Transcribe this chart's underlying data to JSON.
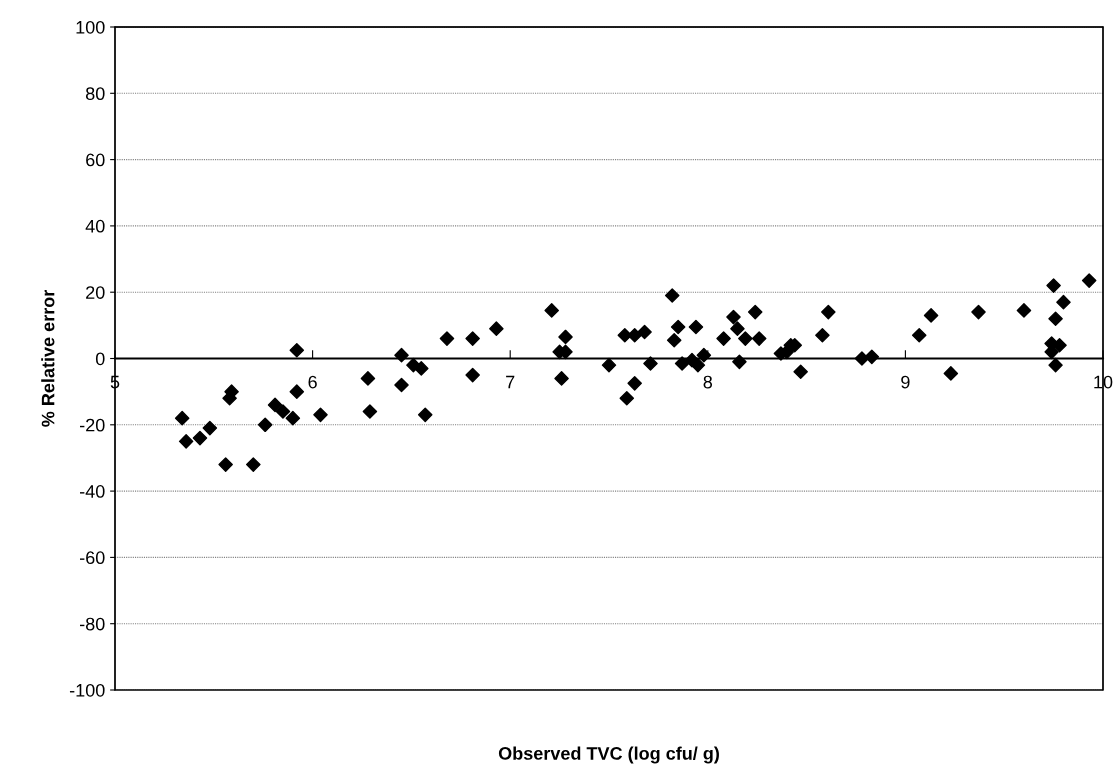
{
  "chart_data": {
    "type": "scatter",
    "xlabel": "Observed TVC (log cfu/ g)",
    "ylabel": "% Relative error",
    "xlim": [
      5,
      10
    ],
    "xticks": [
      5,
      6,
      7,
      8,
      9,
      10
    ],
    "ylim": [
      -100,
      100
    ],
    "yticks": [
      -100,
      -80,
      -60,
      -40,
      -20,
      0,
      20,
      40,
      60,
      80,
      100
    ],
    "grid": "y",
    "marker": "diamond",
    "series": [
      {
        "color": "#000000",
        "x": [
          5.34,
          5.36,
          5.43,
          5.48,
          5.56,
          5.58,
          5.59,
          5.7,
          5.76,
          5.81,
          5.85,
          5.9,
          5.92,
          5.92,
          6.04,
          6.28,
          6.29,
          6.45,
          6.45,
          6.51,
          6.55,
          6.57,
          6.68,
          6.81,
          6.81,
          6.93,
          7.21,
          7.25,
          7.26,
          7.28,
          7.28,
          7.5,
          7.58,
          7.59,
          7.63,
          7.63,
          7.68,
          7.71,
          7.82,
          7.83,
          7.85,
          7.87,
          7.92,
          7.94,
          7.95,
          7.98,
          8.08,
          8.13,
          8.15,
          8.16,
          8.19,
          8.24,
          8.26,
          8.37,
          8.4,
          8.42,
          8.44,
          8.47,
          8.58,
          8.61,
          8.78,
          8.83,
          9.07,
          9.13,
          9.23,
          9.37,
          9.6,
          9.74,
          9.74,
          9.75,
          9.76,
          9.76,
          9.78,
          9.8,
          9.93
        ],
        "values": [
          -18,
          -25,
          -24,
          -21,
          -32,
          -12,
          -10,
          -32,
          -20,
          -14,
          -16,
          -18,
          -10,
          2.5,
          -17,
          -6,
          -16,
          -8,
          1,
          -2,
          -3,
          -17,
          6,
          6,
          -5,
          9,
          14.5,
          2,
          -6,
          6.5,
          2,
          -2,
          7,
          -12,
          7,
          -7.5,
          8,
          -1.5,
          19,
          5.5,
          9.5,
          -1.5,
          -0.5,
          9.5,
          -2,
          1,
          6,
          12.5,
          9,
          -1,
          6,
          14,
          6,
          1.5,
          2,
          4,
          4,
          -4,
          7,
          14,
          0,
          0.5,
          7,
          13,
          -4.5,
          14,
          14.5,
          4.5,
          2,
          22,
          12,
          -2,
          4,
          17,
          23.5
        ]
      }
    ]
  }
}
